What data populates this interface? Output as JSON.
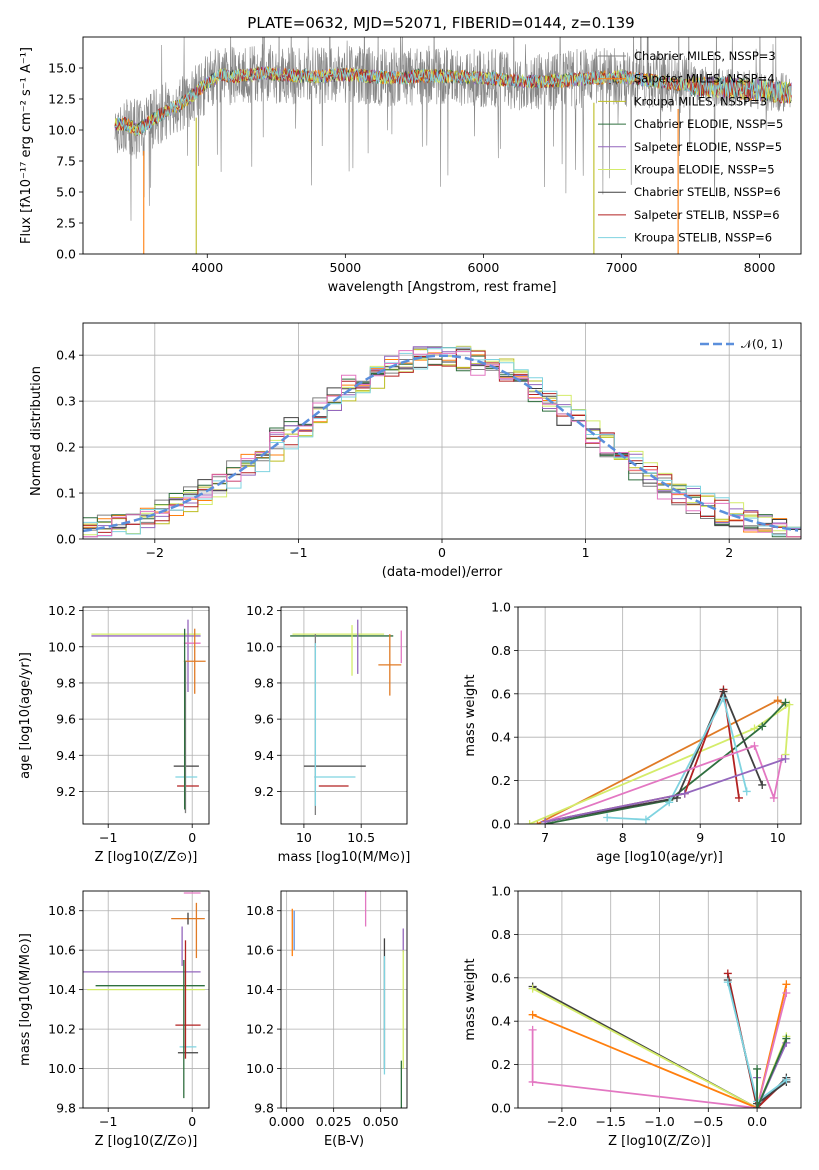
{
  "figure": {
    "title": "PLATE=0632, MJD=52071, FIBERID=0144, z=0.139"
  },
  "colors": {
    "Chabrier MILES": "#7f7f7f",
    "Salpeter MILES": "#ff7f0e",
    "Kroupa MILES": "#bcbd22",
    "Chabrier ELODIE": "#2f6f3f",
    "Salpeter ELODIE": "#9467bd",
    "Kroupa ELODIE": "#d4ec6a",
    "Chabrier STELIB": "#404040",
    "Salpeter STELIB": "#b22222",
    "Kroupa STELIB": "#7fd3e0",
    "extra pink": "#e377c2",
    "extra orange": "#e07b26",
    "gauss": "#5b8fdc",
    "grid": "#b0b0b0"
  },
  "chart_data": [
    {
      "id": "spectrum",
      "type": "line",
      "title": "PLATE=0632, MJD=52071, FIBERID=0144, z=0.139",
      "xlabel": "wavelength [Angstrom, rest frame]",
      "ylabel": "Flux [fλ10⁻¹⁷ erg cm⁻² s⁻¹ A⁻¹]",
      "xlim": [
        3100,
        8300
      ],
      "ylim": [
        0,
        17.5
      ],
      "xticks": [
        4000,
        5000,
        6000,
        7000,
        8000
      ],
      "yticks": [
        0.0,
        2.5,
        5.0,
        7.5,
        10.0,
        12.5,
        15.0
      ],
      "grid": false,
      "legend_position": "top-right",
      "series": [
        {
          "name": "Chabrier MILES, N_SSP=3",
          "label": "Chabrier MILES, NSSP=3",
          "color_key": "Chabrier MILES"
        },
        {
          "name": "Salpeter MILES, N_SSP=4",
          "label": "Salpeter MILES, NSSP=4",
          "color_key": "Salpeter MILES"
        },
        {
          "name": "Kroupa MILES, N_SSP=3",
          "label": "Kroupa MILES, NSSP=3",
          "color_key": "Kroupa MILES"
        },
        {
          "name": "Chabrier ELODIE, N_SSP=5",
          "label": "Chabrier ELODIE, NSSP=5",
          "color_key": "Chabrier ELODIE"
        },
        {
          "name": "Salpeter ELODIE, N_SSP=5",
          "label": "Salpeter ELODIE, NSSP=5",
          "color_key": "Salpeter ELODIE"
        },
        {
          "name": "Kroupa ELODIE, N_SSP=5",
          "label": "Kroupa ELODIE, NSSP=5",
          "color_key": "Kroupa ELODIE"
        },
        {
          "name": "Chabrier STELIB, N_SSP=6",
          "label": "Chabrier STELIB, NSSP=6",
          "color_key": "Chabrier STELIB"
        },
        {
          "name": "Salpeter STELIB, N_SSP=6",
          "label": "Salpeter STELIB, NSSP=6",
          "color_key": "Salpeter STELIB"
        },
        {
          "name": "Kroupa STELIB, N_SSP=6",
          "label": "Kroupa STELIB, NSSP=6",
          "color_key": "Kroupa STELIB"
        }
      ],
      "continuum": {
        "x": [
          3400,
          3500,
          3600,
          3700,
          3800,
          3900,
          4000,
          4100,
          4200,
          4400,
          4600,
          4800,
          5000,
          5200,
          5400,
          5600,
          5800,
          6000,
          6200,
          6400,
          6600,
          6800,
          7000,
          7200,
          7400,
          7600,
          7800,
          8000,
          8200
        ],
        "y": [
          10.5,
          10.0,
          10.8,
          11.5,
          12.0,
          12.8,
          13.8,
          14.5,
          14.3,
          14.6,
          14.4,
          14.3,
          14.5,
          14.3,
          14.2,
          14.4,
          14.3,
          14.2,
          14.0,
          13.9,
          14.0,
          14.2,
          14.3,
          14.0,
          13.7,
          13.5,
          13.4,
          13.2,
          13.0
        ]
      },
      "dropouts": [
        {
          "x": 3540,
          "to": 0.0
        },
        {
          "x": 3920,
          "to": 0.0
        },
        {
          "x": 6800,
          "to": 0.0
        },
        {
          "x": 7410,
          "to": 0.0
        }
      ]
    },
    {
      "id": "residuals",
      "type": "line",
      "xlabel": "(data-model)/error",
      "ylabel": "Normed distribution",
      "xlim": [
        -2.5,
        2.5
      ],
      "ylim": [
        0,
        0.47
      ],
      "xticks": [
        -2,
        -1,
        0,
        1,
        2
      ],
      "yticks": [
        0.0,
        0.1,
        0.2,
        0.3,
        0.4
      ],
      "grid": true,
      "legend_position": "top-right",
      "legend_label": "𝒩(0, 1)",
      "gaussian": {
        "mean": 0,
        "sigma": 1
      },
      "histogram_bin_width": 0.1
    },
    {
      "id": "age-vs-Z",
      "type": "scatter",
      "xlabel": "Z [log10(Z/Z⊙)]",
      "ylabel": "age [log10(age/yr)]",
      "xlim": [
        -1.3,
        0.2
      ],
      "ylim": [
        9.02,
        10.22
      ],
      "xticks": [
        -1,
        0
      ],
      "yticks": [
        9.2,
        9.4,
        9.6,
        9.8,
        10.0,
        10.2
      ],
      "grid": true,
      "errorbars": [
        {
          "x": -0.55,
          "xerr": 0.65,
          "y": 10.07,
          "color_key": "Kroupa ELODIE"
        },
        {
          "x": -0.55,
          "xerr": 0.65,
          "y": 10.06,
          "color_key": "Salpeter ELODIE"
        },
        {
          "x": -0.05,
          "y": 9.95,
          "yerr": 0.2,
          "color_key": "Salpeter ELODIE"
        },
        {
          "x": 0.0,
          "y": 10.02,
          "xerr": 0.1,
          "color_key": "extra pink"
        },
        {
          "x": 0.03,
          "y": 9.92,
          "yerr": 0.18,
          "xerr": 0.13,
          "color_key": "extra orange"
        },
        {
          "x": -0.07,
          "y": 9.34,
          "xerr": 0.15,
          "color_key": "Chabrier STELIB"
        },
        {
          "x": -0.07,
          "y": 9.28,
          "xerr": 0.13,
          "color_key": "Kroupa STELIB"
        },
        {
          "x": -0.05,
          "y": 9.23,
          "xerr": 0.13,
          "color_key": "Salpeter STELIB"
        },
        {
          "x": -0.08,
          "y": 9.5,
          "yerr": 0.42,
          "color_key": "Chabrier MILES"
        },
        {
          "x": -0.09,
          "y": 9.6,
          "yerr": 0.5,
          "color_key": "Chabrier ELODIE"
        }
      ]
    },
    {
      "id": "age-vs-mass",
      "type": "scatter",
      "xlabel": "mass [log10(M/M⊙)]",
      "ylabel": "",
      "xlim": [
        9.8,
        10.9
      ],
      "ylim": [
        9.02,
        10.22
      ],
      "xticks": [
        10.0,
        10.5
      ],
      "yticks": [
        9.2,
        9.4,
        9.6,
        9.8,
        10.0,
        10.2
      ],
      "grid": true,
      "errorbars": [
        {
          "x": 10.3,
          "xerr": 0.4,
          "y": 10.07,
          "color_key": "Kroupa ELODIE"
        },
        {
          "x": 10.33,
          "xerr": 0.45,
          "y": 10.06,
          "color_key": "Chabrier ELODIE"
        },
        {
          "x": 10.47,
          "y": 10.0,
          "yerr": 0.15,
          "color_key": "Salpeter ELODIE"
        },
        {
          "x": 10.42,
          "y": 9.98,
          "yerr": 0.14,
          "color_key": "Kroupa ELODIE"
        },
        {
          "x": 10.85,
          "y": 10.0,
          "yerr": 0.09,
          "color_key": "extra pink"
        },
        {
          "x": 10.75,
          "y": 9.9,
          "yerr": 0.17,
          "xerr": 0.1,
          "color_key": "extra orange"
        },
        {
          "x": 10.27,
          "y": 9.34,
          "xerr": 0.27,
          "color_key": "Chabrier STELIB"
        },
        {
          "x": 10.27,
          "y": 9.28,
          "xerr": 0.18,
          "color_key": "Kroupa STELIB"
        },
        {
          "x": 10.26,
          "y": 9.23,
          "xerr": 0.13,
          "color_key": "Salpeter STELIB"
        },
        {
          "x": 10.1,
          "y": 9.57,
          "yerr": 0.5,
          "color_key": "Chabrier MILES"
        },
        {
          "x": 10.1,
          "y": 9.57,
          "yerr": 0.45,
          "color_key": "Kroupa STELIB"
        }
      ]
    },
    {
      "id": "mass-weight-vs-age",
      "type": "line",
      "xlabel": "age  [log10(age/yr)]",
      "ylabel": "mass weight",
      "xlim": [
        6.65,
        10.3
      ],
      "ylim": [
        0,
        1.0
      ],
      "xticks": [
        7,
        8,
        9,
        10
      ],
      "yticks": [
        0.0,
        0.2,
        0.4,
        0.6,
        0.8,
        1.0
      ],
      "grid": true,
      "series": [
        {
          "color_key": "extra orange",
          "x": [
            6.9,
            10.0,
            10.1
          ],
          "y": [
            0.0,
            0.57,
            0.55
          ]
        },
        {
          "color_key": "Kroupa ELODIE",
          "x": [
            6.8,
            9.7,
            10.15,
            10.1
          ],
          "y": [
            0.0,
            0.44,
            0.55,
            0.32
          ]
        },
        {
          "color_key": "Chabrier ELODIE",
          "x": [
            7.0,
            8.6,
            9.8,
            10.1
          ],
          "y": [
            0.0,
            0.11,
            0.45,
            0.56
          ]
        },
        {
          "color_key": "Salpeter STELIB",
          "x": [
            7.0,
            8.8,
            9.3,
            9.5
          ],
          "y": [
            0.01,
            0.14,
            0.62,
            0.12
          ]
        },
        {
          "color_key": "Chabrier STELIB",
          "x": [
            7.0,
            8.7,
            9.3,
            9.8
          ],
          "y": [
            0.01,
            0.12,
            0.61,
            0.18
          ]
        },
        {
          "color_key": "Kroupa STELIB",
          "x": [
            7.8,
            8.3,
            8.6,
            9.3,
            9.6
          ],
          "y": [
            0.03,
            0.02,
            0.1,
            0.58,
            0.15
          ]
        },
        {
          "color_key": "extra pink",
          "x": [
            7.0,
            9.7,
            9.95,
            10.05
          ],
          "y": [
            0.01,
            0.36,
            0.12,
            0.3
          ]
        },
        {
          "color_key": "Salpeter ELODIE",
          "x": [
            7.0,
            8.8,
            10.1
          ],
          "y": [
            0.01,
            0.14,
            0.3
          ]
        }
      ]
    },
    {
      "id": "mass-vs-Z",
      "type": "scatter",
      "xlabel": "Z [log10(Z/Z⊙)]",
      "ylabel": "mass [log10(M/M⊙)]",
      "xlim": [
        -1.3,
        0.2
      ],
      "ylim": [
        9.8,
        10.9
      ],
      "xticks": [
        -1,
        0
      ],
      "yticks": [
        9.8,
        10.0,
        10.2,
        10.4,
        10.6,
        10.8
      ],
      "grid": true,
      "errorbars": [
        {
          "x": 0.0,
          "y": 10.89,
          "xerr": 0.1,
          "color_key": "extra pink"
        },
        {
          "x": -0.05,
          "y": 10.76,
          "xerr": 0.2,
          "color_key": "extra orange"
        },
        {
          "x": -0.05,
          "y": 10.76,
          "yerr": 0.03,
          "color_key": "Chabrier STELIB"
        },
        {
          "x": 0.05,
          "y": 10.7,
          "yerr": 0.14,
          "color_key": "extra orange"
        },
        {
          "x": -0.12,
          "y": 10.62,
          "yerr": 0.1,
          "color_key": "Salpeter ELODIE"
        },
        {
          "x": -0.6,
          "y": 10.49,
          "xerr": 0.7,
          "color_key": "Salpeter ELODIE"
        },
        {
          "x": -0.5,
          "y": 10.42,
          "xerr": 0.65,
          "color_key": "Chabrier ELODIE"
        },
        {
          "x": -0.55,
          "y": 10.4,
          "xerr": 0.7,
          "color_key": "Kroupa ELODIE"
        },
        {
          "x": -0.05,
          "y": 10.22,
          "xerr": 0.15,
          "color_key": "Salpeter STELIB"
        },
        {
          "x": -0.05,
          "y": 10.11,
          "xerr": 0.1,
          "color_key": "Kroupa STELIB"
        },
        {
          "x": -0.05,
          "y": 10.08,
          "xerr": 0.12,
          "color_key": "Chabrier STELIB"
        },
        {
          "x": -0.1,
          "y": 10.2,
          "yerr": 0.35,
          "color_key": "Chabrier ELODIE"
        },
        {
          "x": -0.08,
          "y": 10.35,
          "yerr": 0.3,
          "color_key": "Salpeter STELIB"
        }
      ]
    },
    {
      "id": "mass-vs-EBV",
      "type": "scatter",
      "xlabel": "E(B-V)",
      "ylabel": "",
      "xlim": [
        -0.003,
        0.064
      ],
      "ylim": [
        9.8,
        10.9
      ],
      "xticks": [
        0.0,
        0.025,
        0.05
      ],
      "xticklabels": [
        "0.000",
        "0.025",
        "0.050"
      ],
      "yticks": [
        9.8,
        10.0,
        10.2,
        10.4,
        10.6,
        10.8
      ],
      "grid": true,
      "errorbars": [
        {
          "x": 0.003,
          "y": 10.69,
          "yerr": 0.12,
          "color_key": "Salpeter MILES"
        },
        {
          "x": 0.004,
          "y": 10.7,
          "yerr": 0.1,
          "color_key": "gauss"
        },
        {
          "x": 0.042,
          "y": 10.81,
          "yerr": 0.09,
          "color_key": "extra pink"
        },
        {
          "x": 0.052,
          "y": 10.33,
          "yerr": 0.33,
          "color_key": "Chabrier STELIB"
        },
        {
          "x": 0.052,
          "y": 10.27,
          "yerr": 0.3,
          "color_key": "Kroupa STELIB"
        },
        {
          "x": 0.062,
          "y": 10.65,
          "yerr": 0.06,
          "color_key": "Salpeter ELODIE"
        },
        {
          "x": 0.062,
          "y": 10.3,
          "yerr": 0.3,
          "color_key": "Kroupa ELODIE"
        },
        {
          "x": 0.061,
          "y": 9.9,
          "yerr": 0.14,
          "color_key": "Chabrier ELODIE"
        }
      ]
    },
    {
      "id": "mass-weight-vs-Z",
      "type": "line",
      "xlabel": "Z [log10(Z/Z⊙)]",
      "ylabel": "mass weight",
      "xlim": [
        -2.45,
        0.45
      ],
      "ylim": [
        0,
        1.0
      ],
      "xticks": [
        -2.0,
        -1.5,
        -1.0,
        -0.5,
        0.0,
        0.5
      ],
      "xticklabels": [
        "−2.0",
        "−1.5",
        "−1.0",
        "−0.5",
        "0.0",
        "0.5"
      ],
      "yticks": [
        0.0,
        0.2,
        0.4,
        0.6,
        0.8,
        1.0
      ],
      "grid": true,
      "series": [
        {
          "color_key": "Chabrier STELIB",
          "x": [
            -2.3,
            0.0,
            0.3
          ],
          "y": [
            0.56,
            0.0,
            0.14
          ]
        },
        {
          "color_key": "Kroupa ELODIE",
          "x": [
            -2.3,
            0.0,
            0.3
          ],
          "y": [
            0.55,
            0.0,
            0.33
          ]
        },
        {
          "color_key": "Salpeter MILES",
          "x": [
            -2.3,
            0.0,
            0.3
          ],
          "y": [
            0.43,
            0.0,
            0.57
          ]
        },
        {
          "color_key": "extra pink",
          "x": [
            -2.3,
            -2.3,
            0.0,
            0.3
          ],
          "y": [
            0.36,
            0.12,
            0.0,
            0.53
          ]
        },
        {
          "color_key": "Salpeter STELIB",
          "x": [
            -0.3,
            0.0,
            0.3
          ],
          "y": [
            0.62,
            0.0,
            0.13
          ]
        },
        {
          "color_key": "Chabrier STELIB",
          "x": [
            -0.3,
            0.0,
            0.3
          ],
          "y": [
            0.59,
            0.02,
            0.12
          ]
        },
        {
          "color_key": "Kroupa STELIB",
          "x": [
            -0.3,
            0.0,
            0.3
          ],
          "y": [
            0.58,
            0.03,
            0.13
          ]
        },
        {
          "color_key": "Salpeter ELODIE",
          "x": [
            0.0,
            0.0,
            0.3
          ],
          "y": [
            0.14,
            0.0,
            0.3
          ]
        },
        {
          "color_key": "Chabrier ELODIE",
          "x": [
            0.0,
            0.0,
            0.3
          ],
          "y": [
            0.18,
            0.0,
            0.32
          ]
        }
      ]
    }
  ]
}
